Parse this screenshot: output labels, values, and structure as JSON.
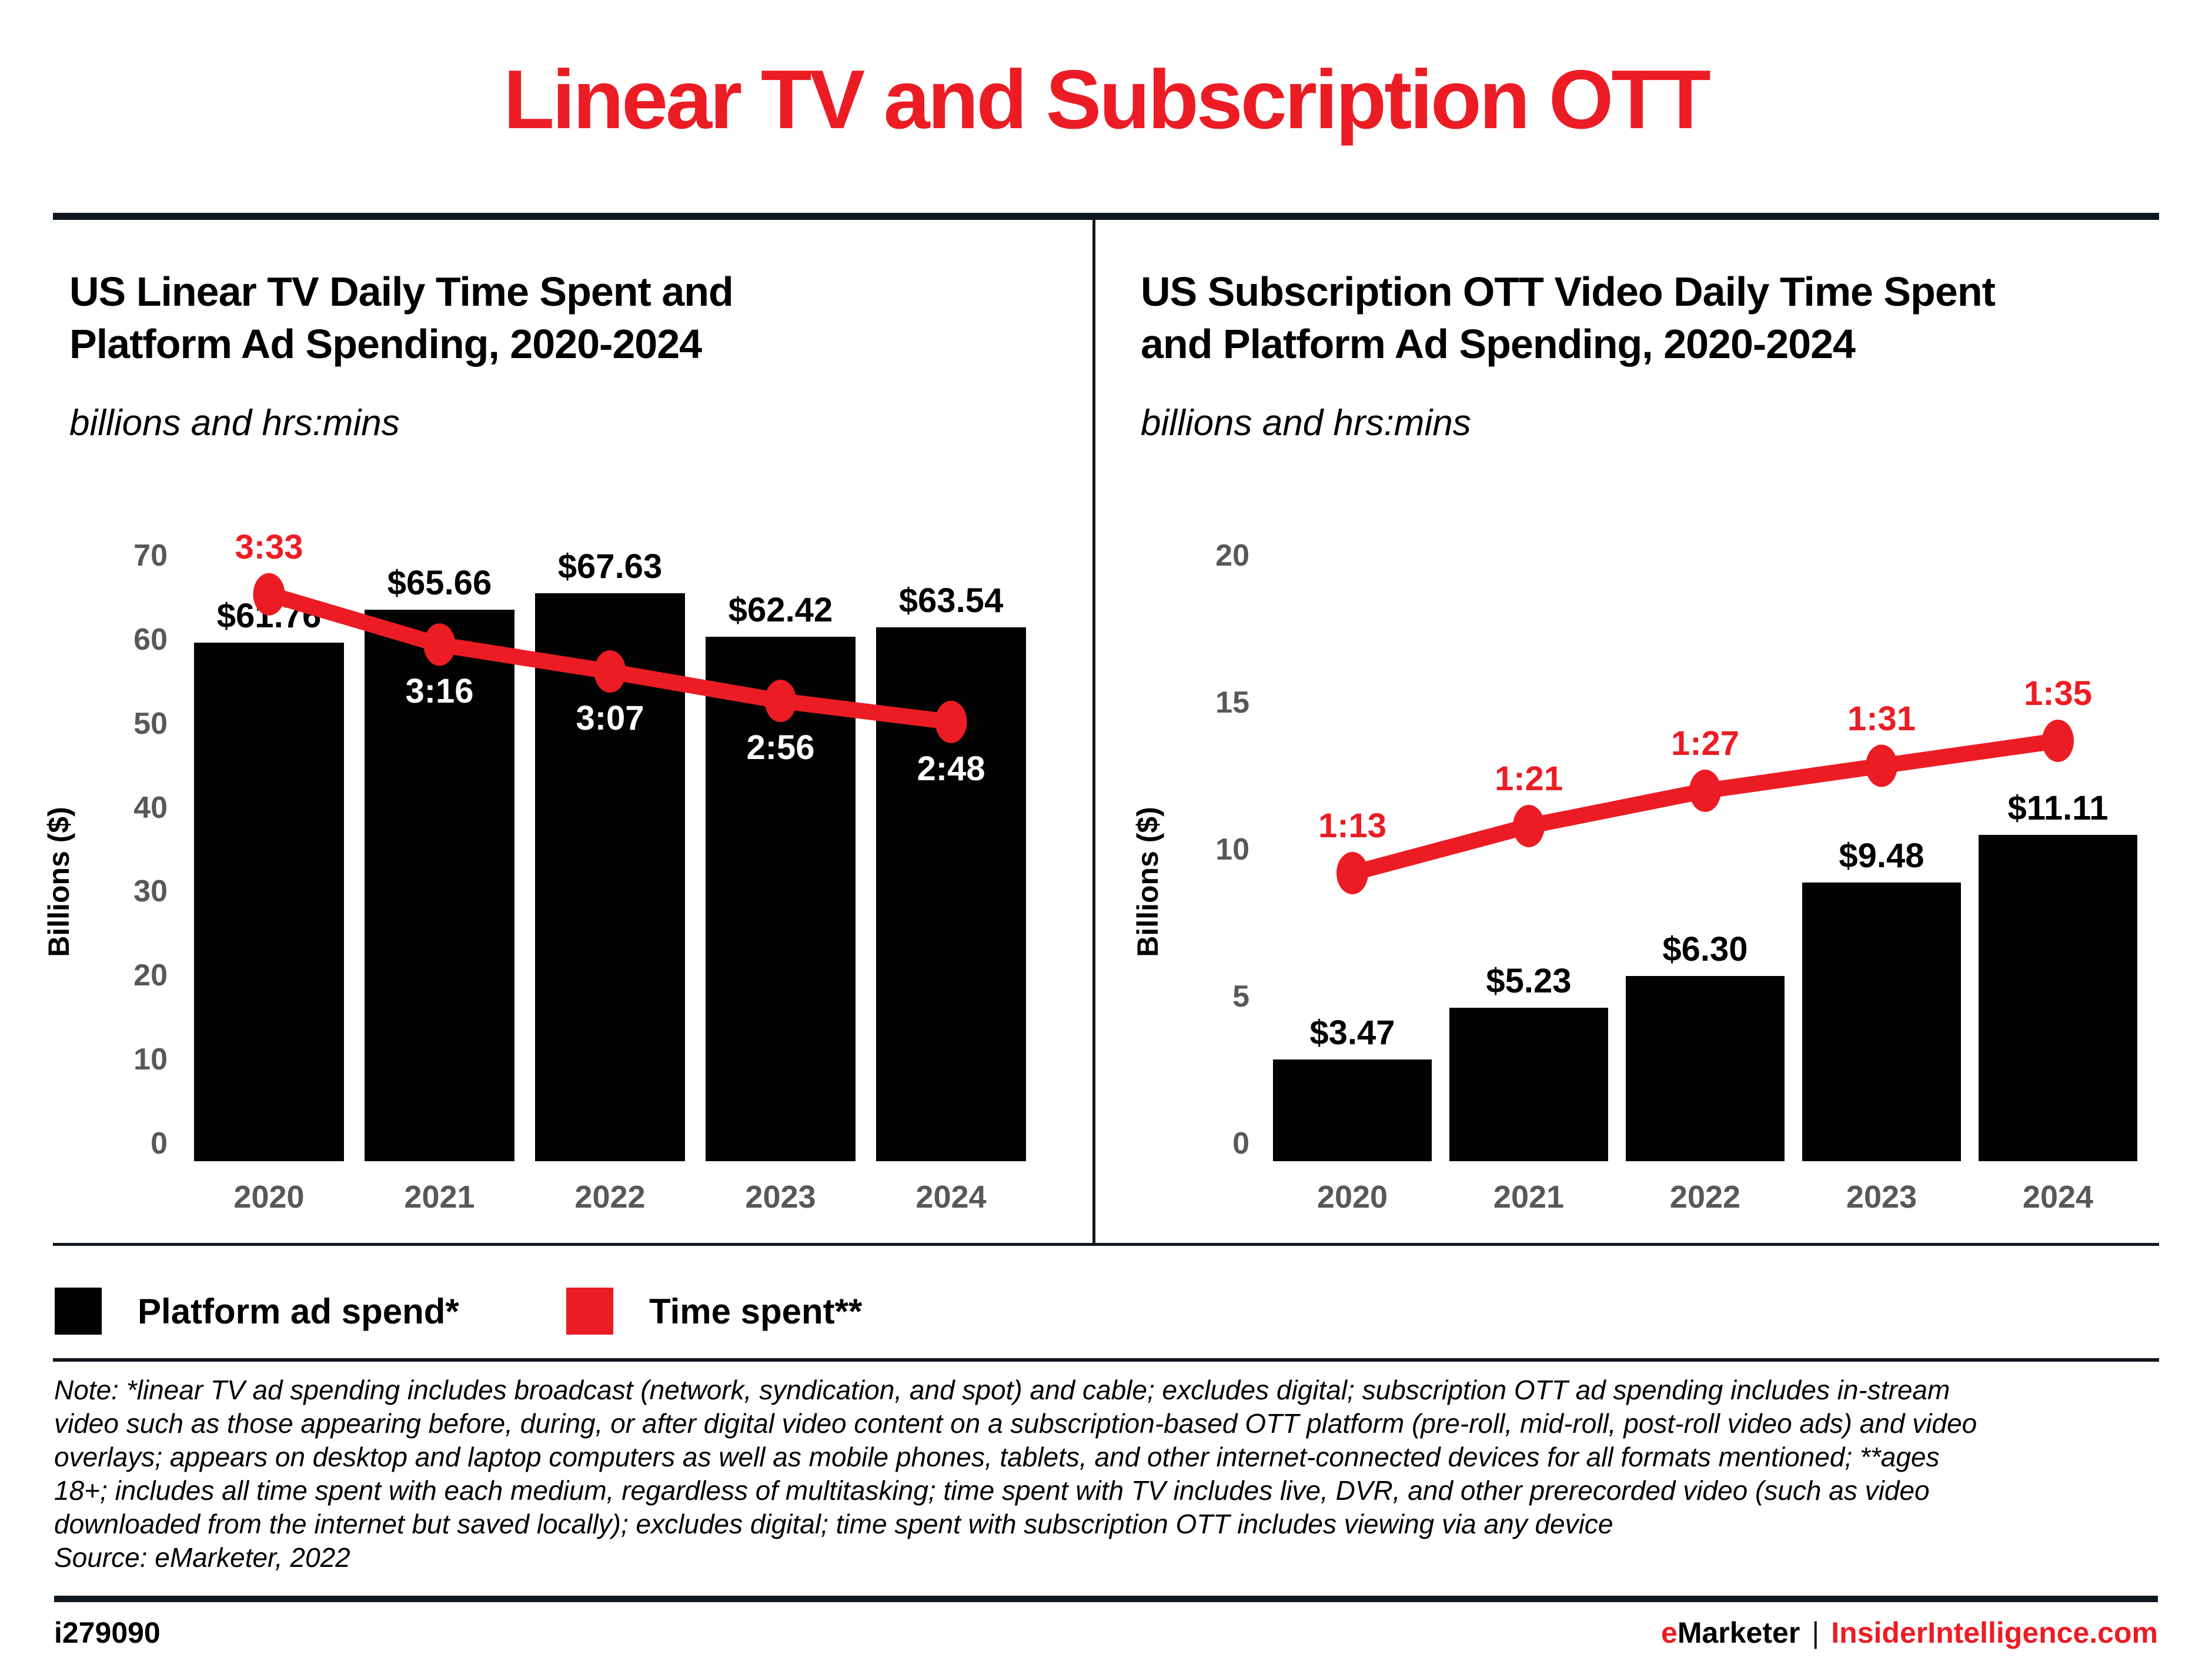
{
  "colors": {
    "accent": "#EC1C24",
    "rule": "#0F161D",
    "axis_text": "#57585B",
    "bar": "#020202"
  },
  "header": {
    "title": "Linear TV and Subscription OTT"
  },
  "chart_data": [
    {
      "type": "bar",
      "id": "linear-tv",
      "title": "US Linear TV Daily Time Spent and Platform Ad Spending, 2020-2024",
      "title_lines": [
        "US Linear TV Daily Time Spent and",
        "Platform Ad Spending, 2020-2024"
      ],
      "subtitle": "billions and hrs:mins",
      "ylabel": "Billions ($)",
      "ylim": [
        0,
        70
      ],
      "yticks": [
        0,
        10,
        20,
        30,
        40,
        50,
        60,
        70
      ],
      "grid": false,
      "legend_position": "bottom",
      "categories": [
        "2020",
        "2021",
        "2022",
        "2023",
        "2024"
      ],
      "series": [
        {
          "name": "Platform ad spend*",
          "type": "bar",
          "unit": "USD billions",
          "values": [
            61.76,
            65.66,
            67.63,
            62.42,
            63.54
          ],
          "labels": [
            "$61.76",
            "$65.66",
            "$67.63",
            "$62.42",
            "$63.54"
          ]
        },
        {
          "name": "Time spent**",
          "type": "line",
          "unit": "hrs:mins",
          "values": [
            "3:33",
            "3:16",
            "3:07",
            "2:56",
            "2:48"
          ],
          "minutes": [
            213,
            196,
            187,
            176,
            168
          ],
          "axis_positions": [
            67.5,
            61.5,
            58.3,
            54.8,
            52.3
          ],
          "label_placement": [
            "above",
            "below",
            "below",
            "below",
            "below"
          ]
        }
      ]
    },
    {
      "type": "bar",
      "id": "subscription-ott",
      "title": "US Subscription OTT Video Daily Time Spent and Platform Ad Spending, 2020-2024",
      "title_lines": [
        "US Subscription OTT Video Daily Time Spent",
        "and Platform Ad Spending, 2020-2024"
      ],
      "subtitle": "billions and hrs:mins",
      "ylabel": "Billions ($)",
      "ylim": [
        0,
        20
      ],
      "yticks": [
        0,
        5,
        10,
        15,
        20
      ],
      "grid": false,
      "legend_position": "bottom",
      "categories": [
        "2020",
        "2021",
        "2022",
        "2023",
        "2024"
      ],
      "series": [
        {
          "name": "Platform ad spend*",
          "type": "bar",
          "unit": "USD billions",
          "values": [
            3.47,
            5.23,
            6.3,
            9.48,
            11.11
          ],
          "labels": [
            "$3.47",
            "$5.23",
            "$6.30",
            "$9.48",
            "$11.11"
          ]
        },
        {
          "name": "Time spent**",
          "type": "line",
          "unit": "hrs:mins",
          "values": [
            "1:13",
            "1:21",
            "1:27",
            "1:31",
            "1:35"
          ],
          "minutes": [
            73,
            81,
            87,
            91,
            95
          ],
          "axis_positions": [
            9.8,
            11.4,
            12.6,
            13.45,
            14.3
          ],
          "label_placement": [
            "above",
            "above",
            "above",
            "above",
            "above"
          ]
        }
      ]
    }
  ],
  "legend": {
    "items": [
      {
        "label": "Platform ad spend*",
        "color": "#020202"
      },
      {
        "label": "Time spent**",
        "color": "#EC1C24"
      }
    ]
  },
  "note": {
    "lines": [
      "Note: *linear TV ad spending includes broadcast (network, syndication, and spot) and cable; excludes digital; subscription OTT ad spending includes in-stream",
      "video such as those appearing before, during, or after digital video content on a subscription-based OTT platform (pre-roll, mid-roll, post-roll video ads) and video",
      "overlays; appears on desktop and laptop computers as well as mobile phones, tablets, and other internet-connected devices for all formats mentioned; **ages",
      "18+; includes all time spent with each medium, regardless of multitasking; time spent with TV includes live, DVR, and other prerecorded video (such as video",
      "downloaded from the internet but saved locally); excludes digital; time spent with subscription OTT includes viewing via any device"
    ],
    "source": "Source: eMarketer, 2022"
  },
  "footer": {
    "chart_id": "i279090",
    "brand": {
      "e": "e",
      "marketer": "Marketer",
      "separator": "|",
      "site": "InsiderIntelligence.com"
    }
  }
}
